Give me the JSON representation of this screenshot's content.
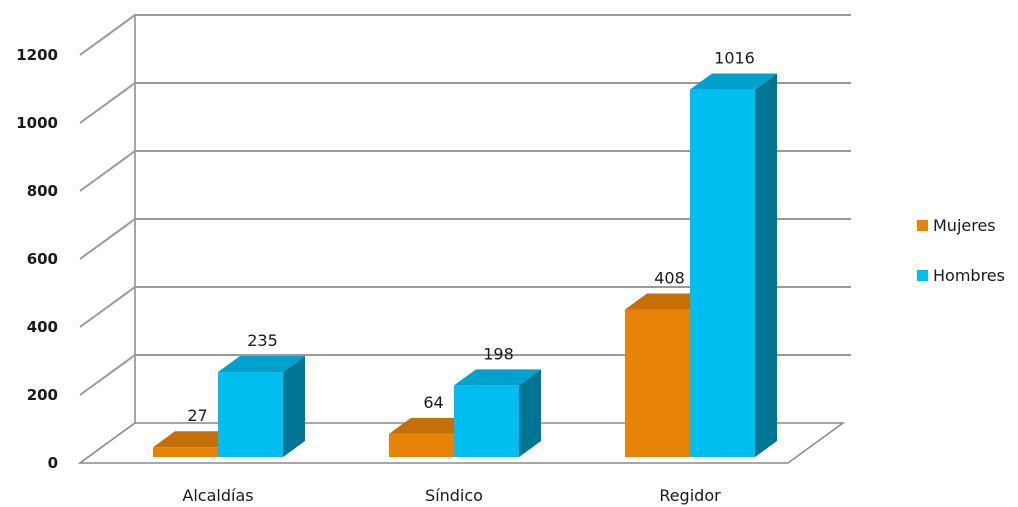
{
  "chart_data": {
    "type": "bar",
    "categories": [
      "Alcaldías",
      "Síndico",
      "Regidor"
    ],
    "series": [
      {
        "name": "Mujeres",
        "values": [
          27,
          64,
          408
        ],
        "color": "#E8830A"
      },
      {
        "name": "Hombres",
        "values": [
          235,
          198,
          1016
        ],
        "color": "#00BFF0"
      }
    ],
    "ylim": [
      0,
      1200
    ],
    "yticks": [
      0,
      200,
      400,
      600,
      800,
      1000,
      1200
    ],
    "grid": true,
    "legend_position": "right",
    "style": "3d-clustered-column",
    "title": "",
    "xlabel": "",
    "ylabel": ""
  }
}
